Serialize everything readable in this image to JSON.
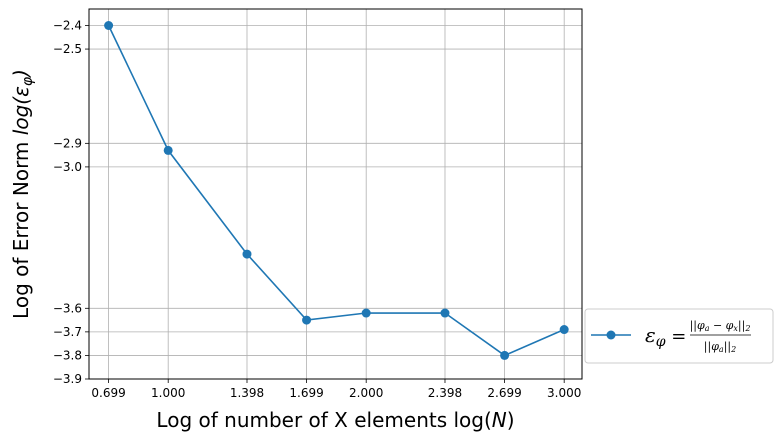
{
  "chart_data": {
    "type": "line",
    "x": [
      0.699,
      1.0,
      1.398,
      1.699,
      2.0,
      2.398,
      2.699,
      3.0
    ],
    "series": [
      {
        "name": "ε_φ = ||φ_a − φ_x||_2 / ||φ_a||_2",
        "values": [
          -2.4,
          -2.93,
          -3.37,
          -3.65,
          -3.62,
          -3.62,
          -3.8,
          -3.69
        ],
        "color": "#1f77b4",
        "marker": "circle"
      }
    ],
    "xticks": [
      "0.699",
      "1.000",
      "1.398",
      "1.699",
      "2.000",
      "2.398",
      "2.699",
      "3.000"
    ],
    "yticks": [
      -2.4,
      -2.5,
      -2.9,
      -3.0,
      -3.6,
      -3.7,
      -3.8,
      -3.9
    ],
    "ytick_labels": [
      "−2.4",
      "−2.5",
      "−2.9",
      "−3.0",
      "−3.6",
      "−3.7",
      "−3.8",
      "−3.9"
    ],
    "xlabel": "Log of number of X elements log(N)",
    "ylabel": "Log of Error Norm log(ε_φ)",
    "xlim": [
      0.6,
      3.09
    ],
    "ylim": [
      -3.9,
      -2.33
    ],
    "grid": true,
    "legend_position": "outside right, bottom",
    "legend": {
      "symbol": "ε",
      "subscript": "φ",
      "numerator": "||φ_a − φ_x||_2",
      "denominator": "||φ_a||_2"
    }
  }
}
